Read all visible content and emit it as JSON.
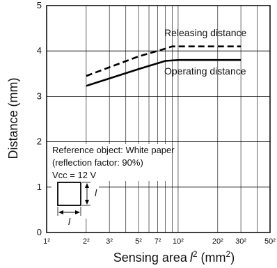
{
  "chart_data": {
    "type": "line",
    "xlabel": "Sensing area",
    "xlabel_var": "l",
    "xlabel_sup": "2",
    "xlabel_unit_open": " (mm",
    "xlabel_unit_sup": "2",
    "xlabel_unit_close": ")",
    "ylabel": "Distance (mm)",
    "xscale": "log",
    "xlim": [
      1,
      50
    ],
    "ylim": [
      0,
      5
    ],
    "x_ticks": [
      {
        "value": 1,
        "label": "1²"
      },
      {
        "value": 2,
        "label": "2²"
      },
      {
        "value": 3,
        "label": "3²"
      },
      {
        "value": 5,
        "label": "5²"
      },
      {
        "value": 7,
        "label": "7²"
      },
      {
        "value": 10,
        "label": "10²"
      },
      {
        "value": 20,
        "label": "20²"
      },
      {
        "value": 30,
        "label": "30²"
      },
      {
        "value": 50,
        "label": "50²"
      }
    ],
    "x_grid": [
      1,
      2,
      3,
      4,
      5,
      6,
      7,
      8,
      9,
      10,
      20,
      30,
      40,
      50
    ],
    "y_ticks": [
      {
        "value": 0,
        "label": "0"
      },
      {
        "value": 1,
        "label": "1"
      },
      {
        "value": 2,
        "label": "2"
      },
      {
        "value": 3,
        "label": "3"
      },
      {
        "value": 4,
        "label": "4"
      },
      {
        "value": 5,
        "label": "5"
      }
    ],
    "grid": true,
    "series": [
      {
        "name": "Releasing distance",
        "style": "dashed",
        "x": [
          2,
          5,
          8,
          9,
          10,
          30
        ],
        "y": [
          3.45,
          3.88,
          4.05,
          4.1,
          4.1,
          4.1
        ]
      },
      {
        "name": "Operating distance",
        "style": "solid",
        "x": [
          2,
          5,
          8,
          10,
          30
        ],
        "y": [
          3.23,
          3.6,
          3.78,
          3.8,
          3.8
        ]
      }
    ],
    "annotation": {
      "lines": [
        "Reference object: White paper",
        "(reflection factor: 90%)",
        "Vcc = 12 V"
      ],
      "dimension_symbol": "l"
    },
    "colors": {
      "line": "#000000",
      "grid": "#000000",
      "background": "#ffffff"
    }
  }
}
